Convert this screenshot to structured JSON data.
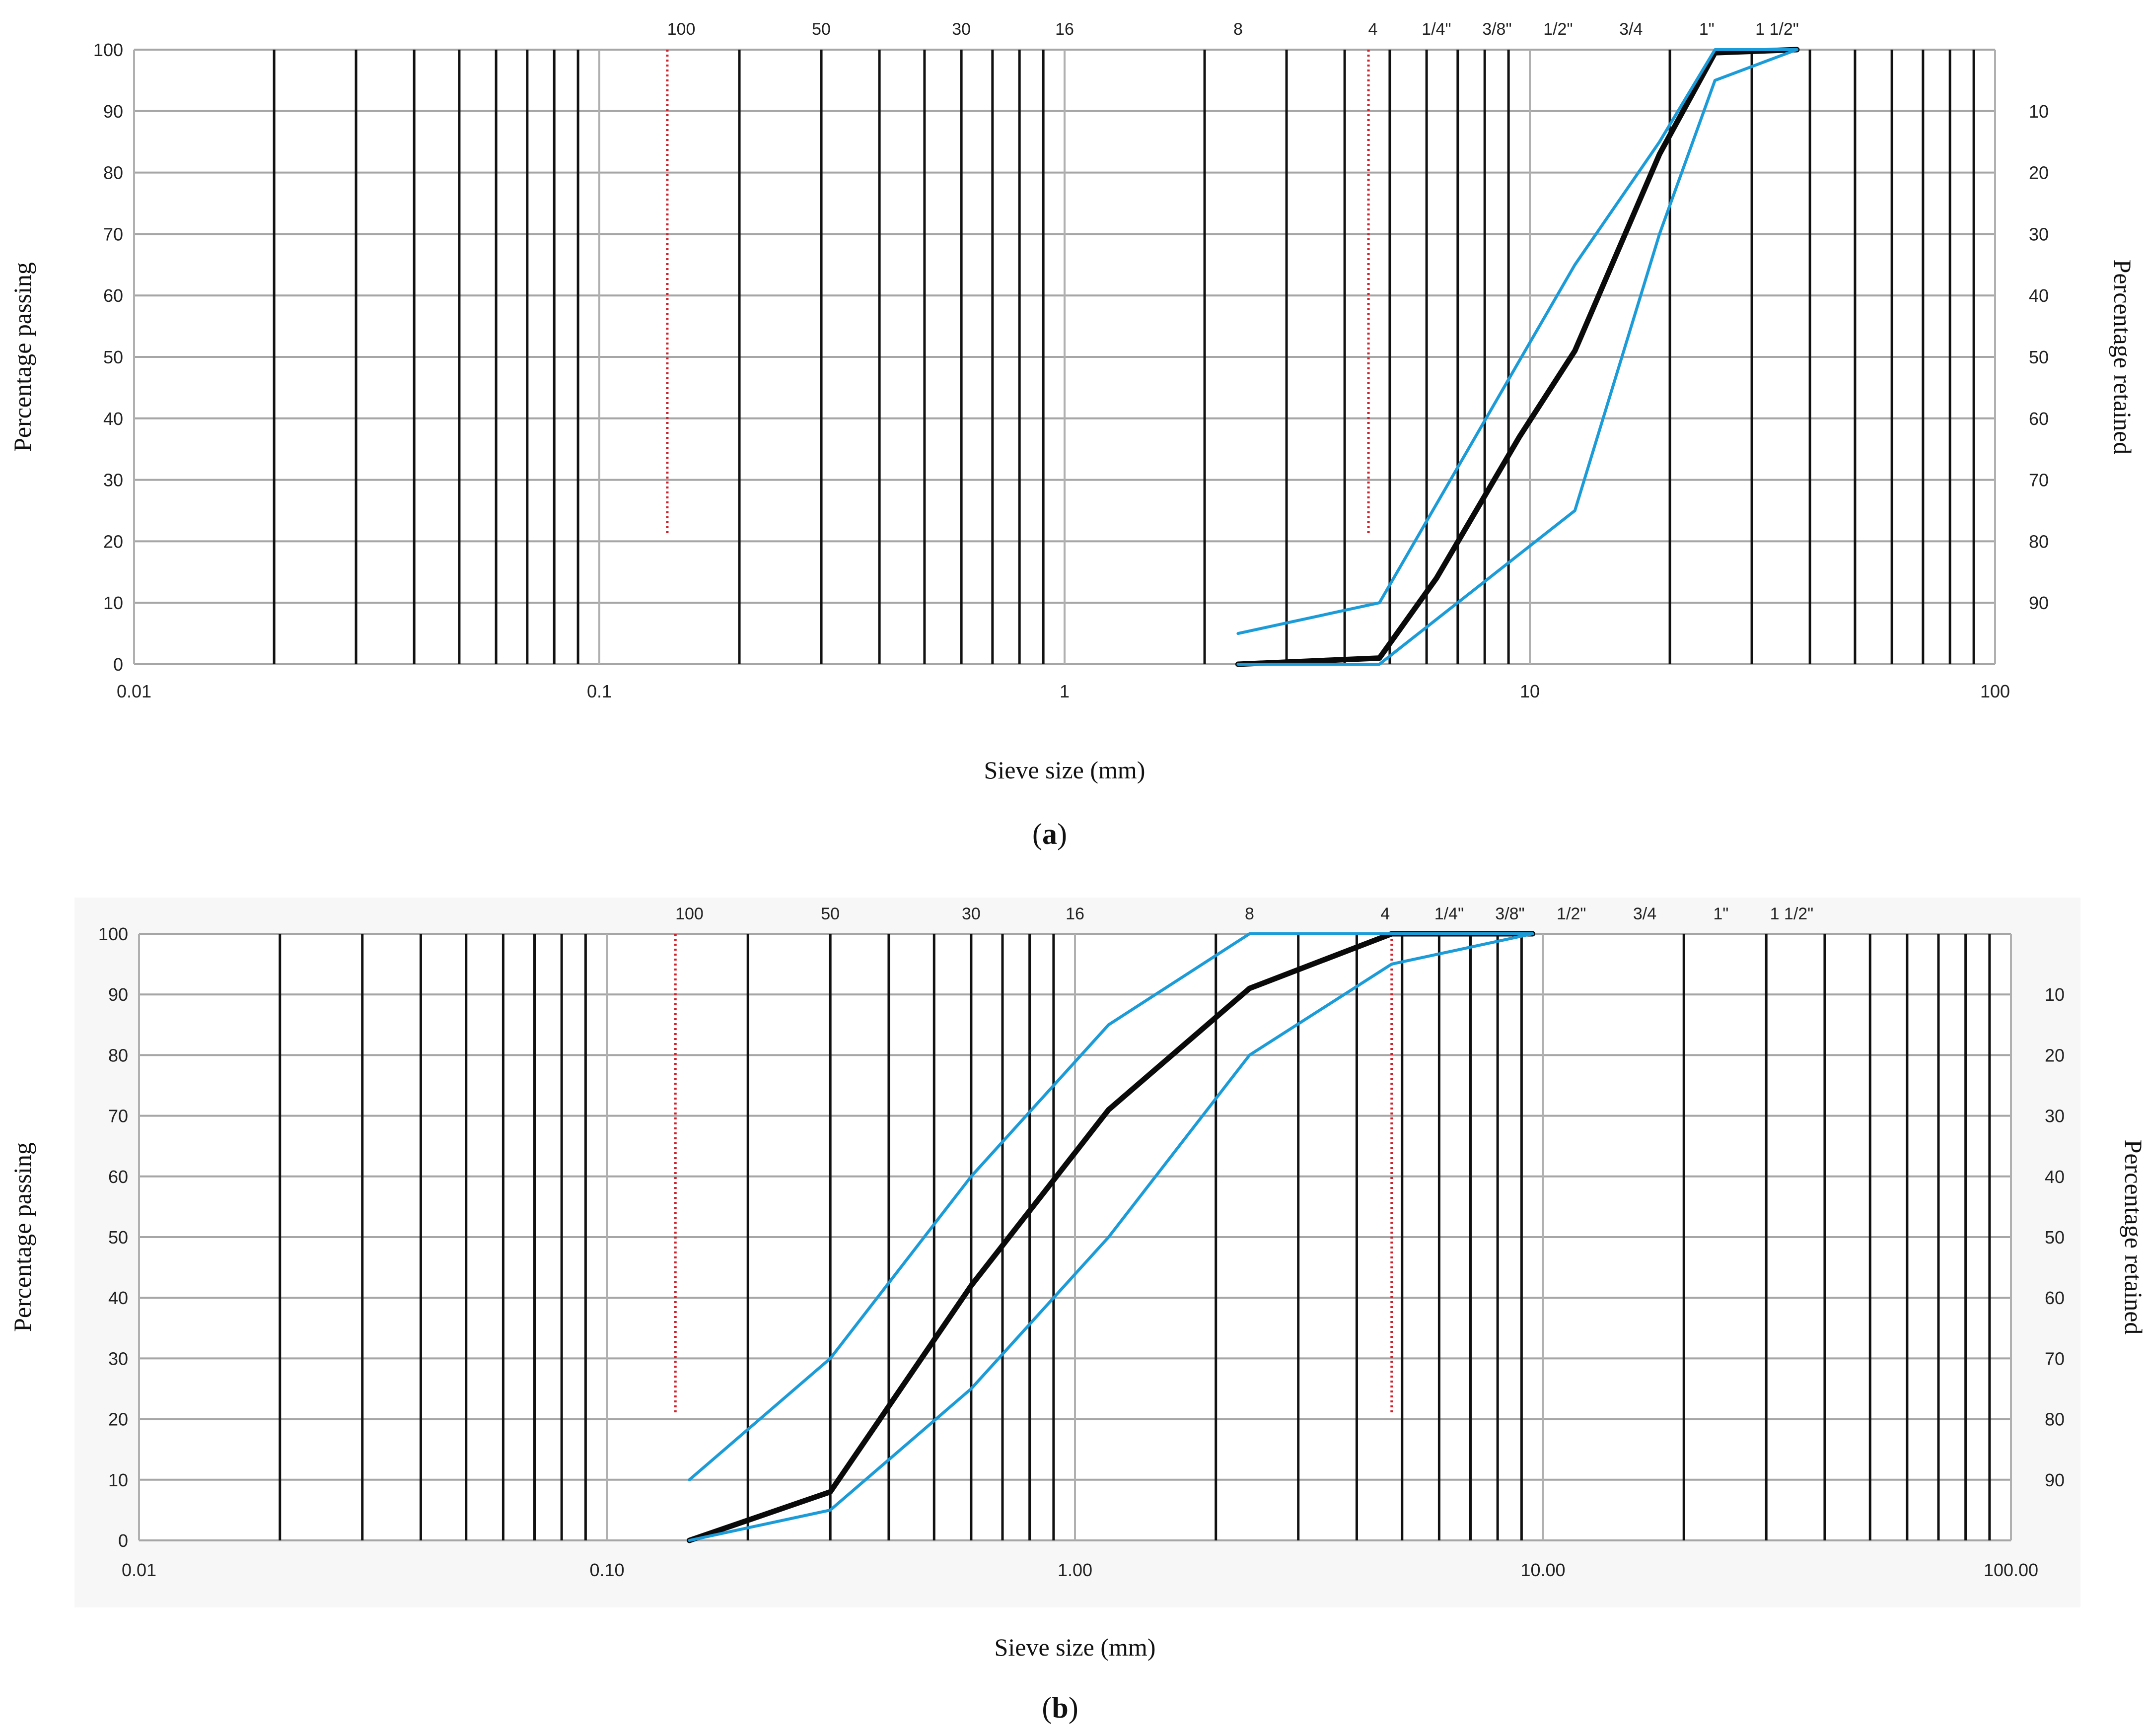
{
  "chart_data": [
    {
      "panel_label": "(a)",
      "type": "line",
      "x_scale": "log",
      "xlim": [
        0.01,
        100
      ],
      "ylim": [
        0,
        100
      ],
      "x_tick_labels": [
        "0.01",
        "0.1",
        "1",
        "10",
        "100"
      ],
      "y_ticks": [
        0,
        10,
        20,
        30,
        40,
        50,
        60,
        70,
        80,
        90,
        100
      ],
      "y2_ticks": [
        10,
        20,
        30,
        40,
        50,
        60,
        70,
        80,
        90
      ],
      "xlabel": "Sieve size (mm)",
      "ylabel": "Percentage passing",
      "y2label": "Percentage retained",
      "sieve_labels": [
        {
          "label": "100",
          "x": 0.15
        },
        {
          "label": "50",
          "x": 0.3
        },
        {
          "label": "30",
          "x": 0.6
        },
        {
          "label": "16",
          "x": 1.0
        },
        {
          "label": "8",
          "x": 2.36
        },
        {
          "label": "4",
          "x": 4.6
        },
        {
          "label": "1/4\"",
          "x": 6.3
        },
        {
          "label": "3/8\"",
          "x": 8.5
        },
        {
          "label": "1/2\"",
          "x": 11.5
        },
        {
          "label": "3/4",
          "x": 16.5
        },
        {
          "label": "1\"",
          "x": 24
        },
        {
          "label": "1 1/2\"",
          "x": 34
        }
      ],
      "reference_lines": [
        {
          "x": 0.14,
          "y_from": 21,
          "y_to": 100
        },
        {
          "x": 4.5,
          "y_from": 21,
          "y_to": 100
        }
      ],
      "grid": true,
      "series": [
        {
          "color": "#0a0a0a",
          "x": [
            2.36,
            4.75,
            6.3,
            9.5,
            12.5,
            19,
            25,
            37.5
          ],
          "y": [
            0,
            1,
            14,
            37,
            51,
            83,
            99.5,
            100
          ]
        },
        {
          "color": "#1b9bd7",
          "x": [
            2.36,
            4.75,
            12.5,
            19,
            25,
            37.5
          ],
          "y": [
            5,
            10,
            65,
            85,
            100,
            100
          ]
        },
        {
          "color": "#1b9bd7",
          "x": [
            2.36,
            4.75,
            12.5,
            19,
            25,
            37.5
          ],
          "y": [
            0,
            0,
            25,
            70,
            95,
            100
          ]
        }
      ]
    },
    {
      "panel_label": "(b)",
      "type": "line",
      "x_scale": "log",
      "xlim": [
        0.01,
        100
      ],
      "ylim": [
        0,
        100
      ],
      "x_tick_labels": [
        "0.01",
        "0.10",
        "1.00",
        "10.00",
        "100.00"
      ],
      "y_ticks": [
        0,
        10,
        20,
        30,
        40,
        50,
        60,
        70,
        80,
        90,
        100
      ],
      "y2_ticks": [
        10,
        20,
        30,
        40,
        50,
        60,
        70,
        80,
        90
      ],
      "xlabel": "Sieve size (mm)",
      "ylabel": "Percentage passing",
      "y2label": "Percentage retained",
      "sieve_labels": [
        {
          "label": "100",
          "x": 0.15
        },
        {
          "label": "50",
          "x": 0.3
        },
        {
          "label": "30",
          "x": 0.6
        },
        {
          "label": "16",
          "x": 1.0
        },
        {
          "label": "8",
          "x": 2.36
        },
        {
          "label": "4",
          "x": 4.6
        },
        {
          "label": "1/4\"",
          "x": 6.3
        },
        {
          "label": "3/8\"",
          "x": 8.5
        },
        {
          "label": "1/2\"",
          "x": 11.5
        },
        {
          "label": "3/4",
          "x": 16.5
        },
        {
          "label": "1\"",
          "x": 24
        },
        {
          "label": "1 1/2\"",
          "x": 34
        }
      ],
      "reference_lines": [
        {
          "x": 0.14,
          "y_from": 21,
          "y_to": 100
        },
        {
          "x": 4.75,
          "y_from": 21,
          "y_to": 100
        }
      ],
      "grid": true,
      "series": [
        {
          "color": "#0a0a0a",
          "x": [
            0.15,
            0.3,
            0.6,
            1.18,
            2.36,
            4.75,
            9.5
          ],
          "y": [
            0,
            8,
            42,
            71,
            91,
            100,
            100
          ]
        },
        {
          "color": "#1b9bd7",
          "x": [
            0.15,
            0.3,
            0.6,
            1.18,
            2.36,
            4.75,
            9.5
          ],
          "y": [
            10,
            30,
            60,
            85,
            100,
            100,
            100
          ]
        },
        {
          "color": "#1b9bd7",
          "x": [
            0.15,
            0.3,
            0.6,
            1.18,
            2.36,
            4.75,
            9.5
          ],
          "y": [
            0,
            5,
            25,
            50,
            80,
            95,
            100
          ]
        }
      ]
    }
  ]
}
